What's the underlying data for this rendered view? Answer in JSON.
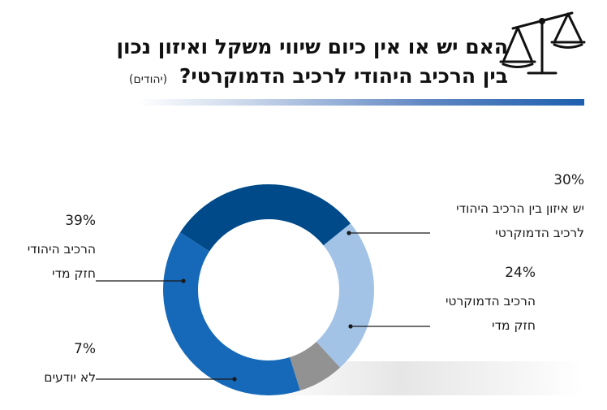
{
  "header": {
    "title_line1": "האם יש או אין כיום שיווי משקל ואיזון נכון",
    "title_line2": "בין הרכיב היהודי לרכיב הדמוקרטי?",
    "subtitle": "(יהודים)",
    "icon": "scales-icon"
  },
  "chart_data": {
    "type": "pie",
    "variant": "donut",
    "title": "האם יש או אין כיום שיווי משקל ואיזון נכון בין הרכיב היהודי לרכיב הדמוקרטי?",
    "subtitle": "(יהודים)",
    "slices": [
      {
        "label_line1": "יש איזון בין הרכיב היהודי",
        "label_line2": "לרכיב הדמוקרטי",
        "value": 30,
        "display": "30%",
        "color": "#004a8a"
      },
      {
        "label_line1": "הרכיב הדמוקרטי",
        "label_line2": "חזק מדי",
        "value": 24,
        "display": "24%",
        "color": "#a3c3e6"
      },
      {
        "label_line1": "לא יודעים",
        "label_line2": "",
        "value": 7,
        "display": "7%",
        "color": "#929292"
      },
      {
        "label_line1": "הרכיב היהודי",
        "label_line2": "חזק מדי",
        "value": 39,
        "display": "39%",
        "color": "#1669b8"
      }
    ]
  }
}
